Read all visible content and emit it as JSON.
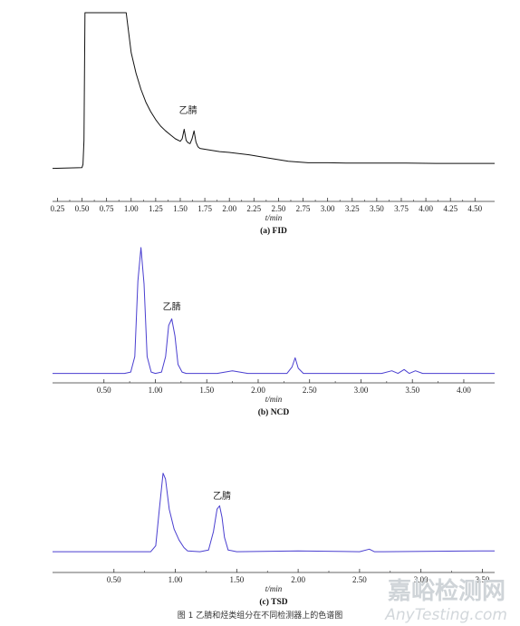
{
  "chart_data": [
    {
      "type": "line",
      "subtitle": "(a) FID",
      "xlabel": "t/min",
      "xlim": [
        0.2,
        4.7
      ],
      "ylim": [
        0,
        100
      ],
      "xticks": [
        0.25,
        0.5,
        0.75,
        1.0,
        1.25,
        1.5,
        1.75,
        2.0,
        2.25,
        2.5,
        2.75,
        3.0,
        3.25,
        3.5,
        3.75,
        4.0,
        4.25,
        4.5
      ],
      "tick_labels": [
        "0.25",
        "0.50",
        "0.75",
        "1.00",
        "1.25",
        "1.50",
        "1.75",
        "2.00",
        "2.25",
        "2.50",
        "2.75",
        "3.00",
        "3.25",
        "3.50",
        "3.75",
        "4.00",
        "4.25",
        "4.50"
      ],
      "annotation": {
        "text": "乙腈",
        "x": 1.58,
        "y": 37
      },
      "color": "#111111",
      "series": [
        {
          "x": [
            0.2,
            0.5,
            0.51,
            0.52,
            0.53,
            0.54,
            0.55,
            0.56,
            0.57,
            0.58,
            0.6,
            0.8,
            0.9,
            0.95,
            1.0,
            1.05,
            1.1,
            1.15,
            1.2,
            1.25,
            1.3,
            1.35,
            1.4,
            1.45,
            1.5,
            1.52,
            1.54,
            1.56,
            1.58,
            1.6,
            1.62,
            1.64,
            1.66,
            1.68,
            1.7,
            1.8,
            1.9,
            2.0,
            2.2,
            2.4,
            2.6,
            2.8,
            3.0,
            3.2,
            3.5,
            3.8,
            4.1,
            4.4,
            4.7
          ],
          "y": [
            2.5,
            3,
            5,
            20,
            100,
            100,
            100,
            100,
            100,
            100,
            100,
            100,
            100,
            100,
            75,
            62,
            52,
            44,
            38,
            33,
            29,
            26,
            23.5,
            21,
            19.5,
            21,
            27,
            20,
            18.5,
            18,
            21,
            26,
            19,
            16,
            15,
            14,
            13,
            12.5,
            11,
            9,
            7,
            6,
            6,
            5.8,
            5.8,
            5.8,
            5.6,
            5.6,
            5.6
          ]
        }
      ]
    },
    {
      "type": "line",
      "subtitle": "(b) NCD",
      "xlabel": "t/min",
      "xlim": [
        0.0,
        4.3
      ],
      "ylim": [
        0,
        100
      ],
      "xticks": [
        0.5,
        1.0,
        1.5,
        2.0,
        2.5,
        3.0,
        3.5,
        4.0
      ],
      "tick_labels": [
        "0.50",
        "1.00",
        "1.50",
        "2.00",
        "2.50",
        "3.00",
        "3.50",
        "4.00"
      ],
      "annotation": {
        "text": "乙腈",
        "x": 1.16,
        "y": 50
      },
      "color": "#4a3fd0",
      "series": [
        {
          "x": [
            0.0,
            0.7,
            0.76,
            0.8,
            0.83,
            0.86,
            0.89,
            0.92,
            0.96,
            1.0,
            1.06,
            1.1,
            1.13,
            1.16,
            1.19,
            1.22,
            1.26,
            1.3,
            1.6,
            1.75,
            1.9,
            2.28,
            2.33,
            2.36,
            2.39,
            2.44,
            3.2,
            3.3,
            3.36,
            3.42,
            3.47,
            3.53,
            3.6,
            4.3
          ],
          "y": [
            1,
            1,
            2,
            14,
            72,
            98,
            70,
            14,
            2,
            1,
            2,
            14,
            38,
            43,
            30,
            8,
            2,
            1,
            1,
            3,
            1,
            1,
            6,
            13,
            5,
            1,
            1,
            3,
            1,
            4,
            1,
            3,
            1,
            1
          ]
        }
      ]
    },
    {
      "type": "line",
      "subtitle": "(c) TSD",
      "xlabel": "t/min",
      "xlim": [
        0.0,
        3.6
      ],
      "ylim": [
        0,
        100
      ],
      "xticks": [
        0.5,
        1.0,
        1.5,
        2.0,
        2.5,
        3.0,
        3.5
      ],
      "tick_labels": [
        "0.50",
        "1.00",
        "1.50",
        "2.00",
        "2.50",
        "3.00",
        "3.50"
      ],
      "annotation": {
        "text": "乙腈",
        "x": 1.38,
        "y": 64
      },
      "color": "#4a3fd0",
      "series": [
        {
          "x": [
            0.0,
            0.8,
            0.84,
            0.87,
            0.9,
            0.92,
            0.95,
            0.99,
            1.03,
            1.07,
            1.1,
            1.2,
            1.27,
            1.31,
            1.34,
            1.36,
            1.38,
            1.4,
            1.43,
            1.5,
            2.0,
            2.5,
            2.58,
            2.62,
            2.7,
            3.5,
            3.6
          ],
          "y": [
            1,
            1,
            8,
            52,
            95,
            88,
            52,
            28,
            15,
            6,
            2,
            1,
            3,
            25,
            52,
            56,
            42,
            18,
            3,
            1,
            2,
            1,
            4,
            1,
            1,
            2,
            2
          ]
        }
      ]
    }
  ],
  "caption": "图 1   乙腈和烃类组分在不同检测器上的色谱图",
  "watermark": {
    "cn": "嘉峪检测网",
    "en": "AnyTesting.com"
  }
}
